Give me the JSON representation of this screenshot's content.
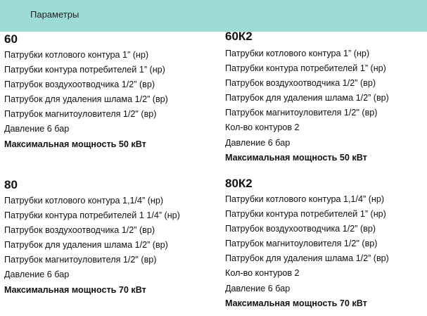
{
  "header": {
    "title": "Параметры",
    "background": "#9ddcd4"
  },
  "models": [
    {
      "name": "60",
      "specs": [
        "Патрубки котлового контура 1” (нр)",
        "Патрубки контура потребителей 1” (нр)",
        "Патрубок воздухоотводчика 1/2” (вр)",
        "Патрубок для удаления шлама 1/2” (вр)",
        "Патрубок магнитоуловителя 1/2\" (вр)",
        "Давление 6 бар"
      ],
      "max_power": "Максимальная мощность 50 кВт"
    },
    {
      "name": "60К2",
      "specs": [
        "Патрубки котлового контура 1” (нр)",
        "Патрубки контура потребителей 1” (нр)",
        "Патрубок воздухоотводчика 1/2” (вр)",
        "Патрубок для удаления шлама 1/2” (вр)",
        "Патрубок магнитоуловителя 1/2\" (вр)",
        "Кол-во контуров 2",
        "Давление 6 бар"
      ],
      "max_power": "Максимальная мощность 50 кВт"
    },
    {
      "name": "80",
      "specs": [
        "Патрубки котлового контура 1,1/4” (нр)",
        "Патрубки контура потребителей 1 1/4” (нр)",
        "Патрубок воздухоотводчика 1/2” (вр)",
        "Патрубок для удаления шлама 1/2” (вр)",
        "Патрубок магнитоуловителя 1/2\" (вр)",
        "Давление 6 бар"
      ],
      "max_power": "Максимальная мощность 70 кВт"
    },
    {
      "name": "80К2",
      "specs": [
        "Патрубки котлового контура 1,1/4” (нр)",
        "Патрубки контура потребителей 1” (нр)",
        "Патрубок воздухоотводчика 1/2” (вр)",
        "Патрубок магнитоуловителя 1/2\" (вр)",
        "Патрубок для удаления шлама 1/2” (вр)",
        "Кол-во контуров 2",
        "Давление 6 бар"
      ],
      "max_power": "Максимальная мощность 70 кВт"
    }
  ]
}
